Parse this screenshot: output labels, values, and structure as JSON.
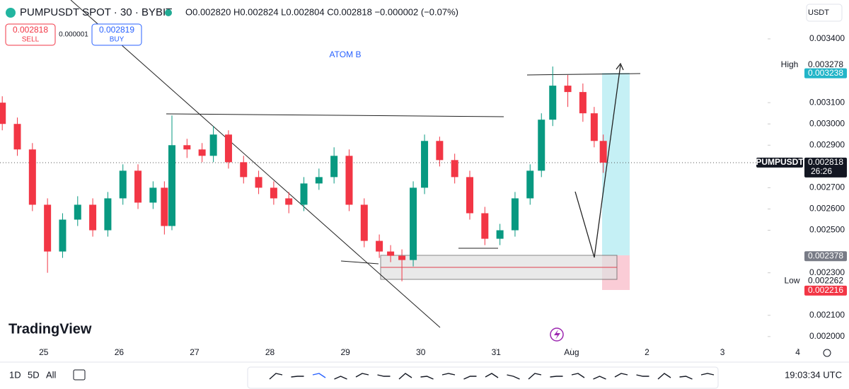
{
  "header": {
    "symbol": "PUMPUSDT SPOT · 30 · BYBIT",
    "ohlc": "O0.002820 H0.002824 L0.002804 C0.002818 −0.000002 (−0.07%)",
    "currency": "USDT"
  },
  "trade": {
    "sell_price": "0.002818",
    "sell_label": "SELL",
    "spread": "0.000001",
    "buy_price": "0.002819",
    "buy_label": "BUY"
  },
  "chart_data": {
    "type": "candlestick",
    "annotation": "ATOM B",
    "x": [
      -0.55,
      -0.35,
      -0.15,
      0.05,
      0.25,
      0.45,
      0.65,
      0.85,
      1.05,
      1.25,
      1.45,
      1.6,
      1.7,
      1.9,
      2.1,
      2.25,
      2.45,
      2.65,
      2.85,
      3.05,
      3.25,
      3.45,
      3.65,
      3.85,
      4.05,
      4.25,
      4.45,
      4.6,
      4.75,
      4.9,
      5.05,
      5.25,
      5.45,
      5.65,
      5.85,
      6.05,
      6.25,
      6.45,
      6.6,
      6.75,
      6.95,
      7.15,
      7.3,
      7.42
    ],
    "open": [
      0.0031,
      0.003,
      0.00288,
      0.00262,
      0.0024,
      0.00255,
      0.00262,
      0.0025,
      0.00265,
      0.00278,
      0.00263,
      0.0027,
      0.00252,
      0.0029,
      0.00288,
      0.00285,
      0.00295,
      0.00282,
      0.00275,
      0.0027,
      0.00265,
      0.00262,
      0.00272,
      0.00275,
      0.00285,
      0.00262,
      0.00245,
      0.0024,
      0.00238,
      0.00236,
      0.0027,
      0.00292,
      0.00283,
      0.00275,
      0.00258,
      0.00246,
      0.0025,
      0.00265,
      0.00278,
      0.00302,
      0.00318,
      0.00315,
      0.00305,
      0.00292
    ],
    "high": [
      0.00313,
      0.00303,
      0.00291,
      0.00265,
      0.00258,
      0.00266,
      0.00265,
      0.00268,
      0.00281,
      0.00281,
      0.00273,
      0.00273,
      0.00304,
      0.00293,
      0.00291,
      0.00299,
      0.00297,
      0.00285,
      0.00278,
      0.00273,
      0.00268,
      0.00275,
      0.00279,
      0.00289,
      0.00288,
      0.00265,
      0.00248,
      0.00243,
      0.00241,
      0.00273,
      0.00295,
      0.00294,
      0.00286,
      0.00278,
      0.00261,
      0.00253,
      0.00268,
      0.00281,
      0.00305,
      0.00327,
      0.00323,
      0.00319,
      0.00308,
      0.00295
    ],
    "low": [
      0.00297,
      0.00285,
      0.00259,
      0.0023,
      0.00237,
      0.00252,
      0.00247,
      0.00247,
      0.00262,
      0.0026,
      0.0026,
      0.00248,
      0.0025,
      0.00284,
      0.00282,
      0.00282,
      0.00279,
      0.00272,
      0.00267,
      0.00262,
      0.00258,
      0.00259,
      0.00269,
      0.00272,
      0.00259,
      0.00242,
      0.00237,
      0.00235,
      0.00226,
      0.00233,
      0.00267,
      0.0028,
      0.00272,
      0.00255,
      0.00243,
      0.00243,
      0.00247,
      0.00262,
      0.00275,
      0.00299,
      0.00308,
      0.00301,
      0.00289,
      0.00277
    ],
    "close": [
      0.003,
      0.00288,
      0.00262,
      0.0024,
      0.00255,
      0.00262,
      0.0025,
      0.00265,
      0.00278,
      0.00263,
      0.0027,
      0.00252,
      0.0029,
      0.00288,
      0.00285,
      0.00295,
      0.00282,
      0.00275,
      0.0027,
      0.00265,
      0.00262,
      0.00272,
      0.00275,
      0.00285,
      0.00262,
      0.00245,
      0.0024,
      0.00238,
      0.00236,
      0.0027,
      0.00292,
      0.00283,
      0.00275,
      0.00258,
      0.00246,
      0.0025,
      0.00265,
      0.00278,
      0.00302,
      0.00318,
      0.00315,
      0.00305,
      0.00292,
      0.002818
    ],
    "up_color": "#089981",
    "down_color": "#f23645",
    "xlim": [
      -0.58,
      9.6
    ],
    "xticks": [
      {
        "value": 0,
        "label": "25"
      },
      {
        "value": 1,
        "label": "26"
      },
      {
        "value": 2,
        "label": "27"
      },
      {
        "value": 3,
        "label": "28"
      },
      {
        "value": 4,
        "label": "29"
      },
      {
        "value": 5,
        "label": "30"
      },
      {
        "value": 6,
        "label": "31"
      },
      {
        "value": 7,
        "label": "Aug"
      },
      {
        "value": 8,
        "label": "2"
      },
      {
        "value": 9,
        "label": "3"
      },
      {
        "value": 10,
        "label": "4"
      }
    ],
    "ylim": [
      0.001953,
      0.003483
    ],
    "yticks": [
      {
        "value": 0.0034,
        "label": "0.003400"
      },
      {
        "value": 0.0031,
        "label": "0.003100"
      },
      {
        "value": 0.003,
        "label": "0.003000"
      },
      {
        "value": 0.0029,
        "label": "0.002900"
      },
      {
        "value": 0.0027,
        "label": "0.002700"
      },
      {
        "value": 0.0026,
        "label": "0.002600"
      },
      {
        "value": 0.0025,
        "label": "0.002500"
      },
      {
        "value": 0.0023,
        "label": "0.002300"
      },
      {
        "value": 0.0021,
        "label": "0.002100"
      },
      {
        "value": 0.002,
        "label": "0.002000"
      }
    ],
    "price_badges": [
      {
        "name": "High",
        "value": 0.003278,
        "label": "0.003278",
        "bg": "#ffffff",
        "color": "#131722"
      },
      {
        "value": 0.003238,
        "label": "0.003238",
        "bg": "#22b5c8",
        "color": "#ffffff"
      },
      {
        "name": "PUMPUSDT",
        "value": 0.002818,
        "label": "0.002818",
        "countdown": "26:26",
        "bg": "#131722",
        "color": "#ffffff"
      },
      {
        "value": 0.002378,
        "label": "0.002378",
        "bg": "#787b86",
        "color": "#ffffff"
      },
      {
        "name": "Low",
        "value": 0.002262,
        "label": "0.002262",
        "bg": "#ffffff",
        "color": "#131722"
      },
      {
        "value": 0.002216,
        "label": "0.002216",
        "bg": "#f23645",
        "color": "#ffffff"
      }
    ]
  },
  "footer": {
    "ranges": [
      "1D",
      "5D",
      "All"
    ],
    "time": "19:03:34 UTC",
    "brand": "TradingView"
  }
}
